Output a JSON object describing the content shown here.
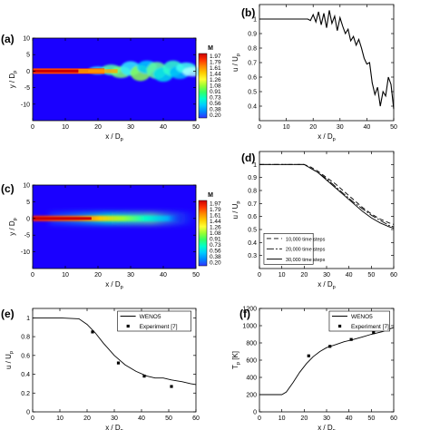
{
  "chart_data": [
    {
      "id": "a",
      "panel_label": "(a)",
      "type": "heatmap",
      "xlabel": "x / D",
      "xlabel_sub": "p",
      "ylabel": "y / D",
      "ylabel_sub": "p",
      "xlim": [
        0,
        50
      ],
      "ylim": [
        -15,
        10
      ],
      "xticks": [
        0,
        10,
        20,
        30,
        40,
        50
      ],
      "yticks": [
        10,
        5,
        0,
        -5,
        -10
      ],
      "colorbar": {
        "title": "M",
        "labels": [
          "1.97",
          "1.79",
          "1.61",
          "1.44",
          "1.26",
          "1.08",
          "0.91",
          "0.73",
          "0.56",
          "0.38",
          "0.20"
        ],
        "colors": [
          "#cc0000",
          "#ff3300",
          "#ff8800",
          "#ffcc00",
          "#ffff33",
          "#99ff33",
          "#33ff66",
          "#00ffcc",
          "#00ccff",
          "#0088ff",
          "#3333ff"
        ]
      },
      "jet_style": "turbulent"
    },
    {
      "id": "b",
      "panel_label": "(b)",
      "type": "line",
      "xlabel": "x / D",
      "xlabel_sub": "p",
      "ylabel": "u / U",
      "ylabel_sub": "p",
      "xlim": [
        0,
        50
      ],
      "ylim": [
        0.3,
        1.1
      ],
      "xticks": [
        0,
        10,
        20,
        30,
        40,
        50
      ],
      "yticks": [
        1,
        0.9,
        0.8,
        0.7,
        0.6,
        0.5,
        0.4
      ],
      "series": [
        {
          "x": [
            0,
            18,
            19,
            20,
            21,
            22,
            23,
            24,
            25,
            26,
            27,
            28,
            29,
            30,
            31,
            32,
            33,
            34,
            35,
            36,
            37,
            38,
            39,
            40,
            41,
            42,
            43,
            44,
            45,
            46,
            47,
            48,
            49,
            50
          ],
          "y": [
            1.0,
            1.0,
            0.99,
            1.03,
            0.98,
            1.05,
            0.96,
            1.04,
            0.94,
            1.06,
            0.97,
            1.02,
            0.92,
            1.01,
            0.95,
            0.9,
            0.93,
            0.85,
            0.88,
            0.82,
            0.86,
            0.8,
            0.73,
            0.69,
            0.7,
            0.56,
            0.48,
            0.53,
            0.4,
            0.5,
            0.47,
            0.6,
            0.55,
            0.38
          ]
        }
      ]
    },
    {
      "id": "c",
      "panel_label": "(c)",
      "type": "heatmap",
      "xlabel": "x / D",
      "xlabel_sub": "p",
      "ylabel": "y / D",
      "ylabel_sub": "p",
      "xlim": [
        0,
        50
      ],
      "ylim": [
        -15,
        10
      ],
      "xticks": [
        0,
        10,
        20,
        30,
        40,
        50
      ],
      "yticks": [
        10,
        5,
        0,
        -5,
        -10
      ],
      "colorbar": {
        "title": "M",
        "labels": [
          "1.97",
          "1.79",
          "1.61",
          "1.44",
          "1.26",
          "1.08",
          "0.91",
          "0.73",
          "0.56",
          "0.38",
          "0.20"
        ],
        "colors": [
          "#cc0000",
          "#ff3300",
          "#ff8800",
          "#ffcc00",
          "#ffff33",
          "#99ff33",
          "#33ff66",
          "#00ffcc",
          "#00ccff",
          "#0088ff",
          "#3333ff"
        ]
      },
      "jet_style": "averaged"
    },
    {
      "id": "d",
      "panel_label": "(d)",
      "type": "line",
      "xlabel": "x / D",
      "xlabel_sub": "p",
      "ylabel": "u / U",
      "ylabel_sub": "p",
      "xlim": [
        0,
        60
      ],
      "ylim": [
        0.2,
        1.1
      ],
      "xticks": [
        0,
        10,
        20,
        30,
        40,
        50,
        60
      ],
      "yticks": [
        1,
        0.9,
        0.8,
        0.7,
        0.6,
        0.5,
        0.4,
        0.3
      ],
      "legend": [
        "10,000 time steps",
        "20,000 time steps",
        "30,000 time steps"
      ],
      "legend_position": "bottom-left",
      "series": [
        {
          "name": "10,000 time steps",
          "dash": "5,3",
          "x": [
            0,
            20,
            23,
            26,
            30,
            34,
            38,
            42,
            46,
            50,
            54,
            58,
            60
          ],
          "y": [
            1.0,
            1.0,
            0.98,
            0.95,
            0.9,
            0.85,
            0.79,
            0.73,
            0.67,
            0.62,
            0.58,
            0.55,
            0.54
          ]
        },
        {
          "name": "20,000 time steps",
          "dash": "8,2,2,2",
          "x": [
            0,
            20,
            23,
            26,
            30,
            34,
            38,
            42,
            46,
            50,
            54,
            58,
            60
          ],
          "y": [
            1.0,
            1.0,
            0.97,
            0.94,
            0.89,
            0.83,
            0.77,
            0.71,
            0.66,
            0.61,
            0.57,
            0.53,
            0.52
          ]
        },
        {
          "name": "30,000 time steps",
          "dash": "",
          "x": [
            0,
            20,
            23,
            26,
            30,
            34,
            38,
            42,
            46,
            50,
            54,
            58,
            60
          ],
          "y": [
            1.0,
            1.0,
            0.97,
            0.94,
            0.88,
            0.82,
            0.76,
            0.7,
            0.64,
            0.59,
            0.55,
            0.52,
            0.51
          ]
        }
      ]
    },
    {
      "id": "e",
      "panel_label": "(e)",
      "type": "line",
      "xlabel": "x / D",
      "xlabel_sub": "p",
      "ylabel": "u / U",
      "ylabel_sub": "p",
      "xlim": [
        0,
        60
      ],
      "ylim": [
        0,
        1.1
      ],
      "xticks": [
        0,
        10,
        20,
        30,
        40,
        50,
        60
      ],
      "yticks": [
        1,
        0.8,
        0.6,
        0.4,
        0.2,
        0
      ],
      "legend": [
        "WENO5",
        "Experiment [7]"
      ],
      "legend_position": "top-right",
      "series": [
        {
          "name": "WENO5",
          "kind": "line",
          "x": [
            0,
            10,
            17,
            20,
            23,
            26,
            30,
            34,
            38,
            42,
            45,
            48,
            51,
            55,
            58,
            60
          ],
          "y": [
            1.0,
            1.0,
            0.99,
            0.93,
            0.84,
            0.73,
            0.6,
            0.5,
            0.43,
            0.38,
            0.36,
            0.36,
            0.34,
            0.32,
            0.3,
            0.29
          ]
        },
        {
          "name": "Experiment [7]",
          "kind": "marker",
          "x": [
            22,
            31.5,
            41,
            51
          ],
          "y": [
            0.85,
            0.52,
            0.38,
            0.27
          ]
        }
      ]
    },
    {
      "id": "f",
      "panel_label": "(f)",
      "type": "line",
      "xlabel": "x / D",
      "xlabel_sub": "p",
      "ylabel": "T",
      "ylabel_sub": "p",
      "ylabel_suffix": " [K]",
      "xlim": [
        0,
        60
      ],
      "ylim": [
        0,
        1200
      ],
      "xticks": [
        0,
        10,
        20,
        30,
        40,
        50,
        60
      ],
      "yticks": [
        1200,
        1000,
        800,
        600,
        400,
        200,
        0
      ],
      "legend": [
        "WENO5",
        "Experiment [7]"
      ],
      "legend_position": "top-right",
      "series": [
        {
          "name": "WENO5",
          "kind": "line",
          "x": [
            0,
            10,
            12,
            15,
            18,
            21,
            24,
            27,
            30,
            34,
            38,
            42,
            46,
            50,
            55,
            60
          ],
          "y": [
            200,
            200,
            230,
            340,
            460,
            560,
            640,
            700,
            745,
            780,
            815,
            840,
            870,
            900,
            930,
            980
          ]
        },
        {
          "name": "Experiment [7]",
          "kind": "marker",
          "x": [
            22,
            31.5,
            41,
            51
          ],
          "y": [
            650,
            760,
            840,
            920
          ]
        }
      ]
    }
  ]
}
